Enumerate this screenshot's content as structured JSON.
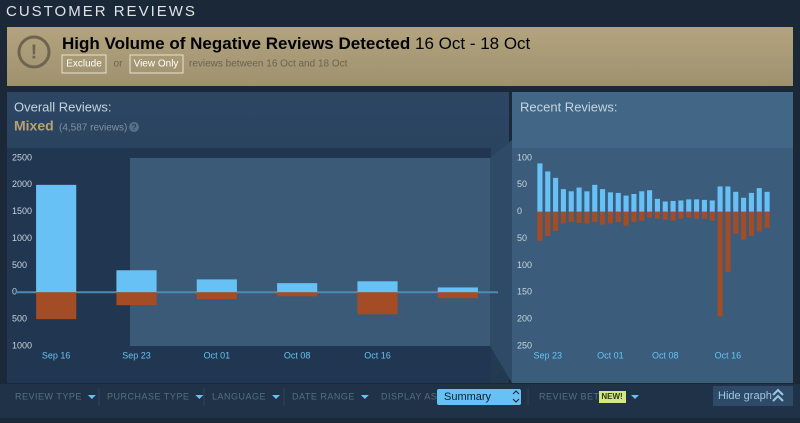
{
  "header": {
    "title": "CUSTOMER REVIEWS"
  },
  "alert": {
    "icon": "!",
    "title": "High Volume of Negative Reviews Detected",
    "dates": "16 Oct - 18 Oct",
    "exclude": "Exclude",
    "or": "or",
    "view_only": "View Only",
    "note": "reviews between 16 Oct and 18 Oct"
  },
  "overall": {
    "label": "Overall Reviews:",
    "rating": "Mixed",
    "count": "(4,587 reviews)",
    "help": "?"
  },
  "recent": {
    "label": "Recent Reviews:"
  },
  "chart_data": [
    {
      "type": "bar",
      "categories": [
        "Sep 16",
        "Sep 23",
        "Oct 01",
        "Oct 08",
        "Oct 16",
        null
      ],
      "series": [
        {
          "color": "#67c1f5",
          "values": [
            2000,
            410,
            240,
            170,
            205,
            90
          ]
        },
        {
          "color": "#a34c25",
          "values": [
            -500,
            -240,
            -130,
            -75,
            -410,
            -110
          ]
        }
      ],
      "ylim": [
        -1000,
        2500
      ],
      "yticks": [
        2500,
        2000,
        1500,
        1000,
        {
          "value": 500,
          "label": "500"
        },
        0,
        {
          "value": -500,
          "label": "500"
        },
        {
          "value": -1000,
          "label": "1000"
        }
      ]
    },
    {
      "type": "bar",
      "categories": [
        null,
        "Sep 23",
        null,
        null,
        null,
        null,
        null,
        null,
        null,
        "Oct 01",
        null,
        null,
        null,
        null,
        null,
        null,
        "Oct 08",
        null,
        null,
        null,
        null,
        null,
        null,
        null,
        "Oct 16",
        null,
        null,
        null,
        null,
        null
      ],
      "series": [
        {
          "color": "#67c1f5",
          "values": [
            90,
            75,
            63,
            42,
            38,
            45,
            38,
            50,
            42,
            36,
            35,
            30,
            33,
            38,
            40,
            24,
            19,
            20,
            21,
            23,
            23,
            22,
            21,
            47,
            47,
            37,
            26,
            35,
            44,
            37
          ]
        },
        {
          "color": "#a34c25",
          "values": [
            -54,
            -45,
            -36,
            -22,
            -19,
            -21,
            -22,
            -19,
            -24,
            -22,
            -19,
            -26,
            -19,
            -17,
            -11,
            -13,
            -15,
            -17,
            -13,
            -11,
            -13,
            -13,
            -17,
            -195,
            -112,
            -41,
            -52,
            -45,
            -37,
            -30
          ]
        }
      ],
      "ylim": [
        -250,
        100
      ],
      "yticks": [
        100,
        50,
        0,
        {
          "value": -50,
          "label": "50"
        },
        {
          "value": -100,
          "label": "100"
        },
        {
          "value": -150,
          "label": "150"
        },
        {
          "value": -200,
          "label": "200"
        },
        {
          "value": -250,
          "label": "250"
        }
      ]
    }
  ],
  "filters": [
    "REVIEW TYPE",
    "PURCHASE TYPE",
    "LANGUAGE",
    "DATE RANGE"
  ],
  "display_as": {
    "label": "DISPLAY AS:",
    "value": "Summary"
  },
  "review_beta": {
    "label": "REVIEW BETA",
    "badge": "NEW!"
  },
  "hide_graph": "Hide graph"
}
